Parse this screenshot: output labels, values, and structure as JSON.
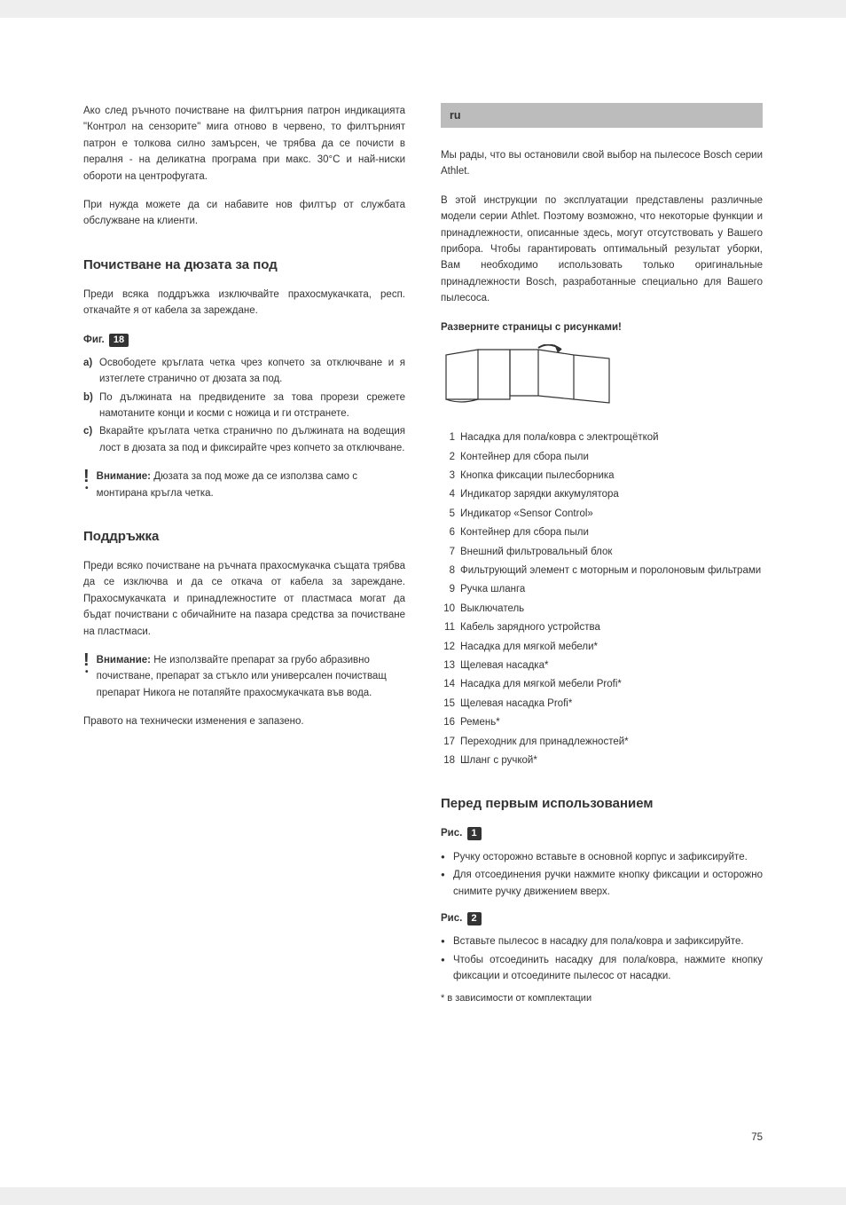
{
  "pageNumber": "75",
  "left": {
    "intro1": "Ако след ръчното почистване на филтърния патрон индикацията \"Контрол на сензорите\" мига отново в червено, то филтърният патрон е толкова силно замърсен, че трябва да се почисти в пералня - на деликатна програма при макс. 30°C и най-ниски обороти на центрофугата.",
    "intro2": "При нужда можете да си набавите нов филтър от службата обслужване на клиенти.",
    "section1_title": "Почистване на дюзата за под",
    "section1_para": "Преди всяка поддръжка изключвайте прахосмукачката, респ. откачайте я от кабела за зареждане.",
    "fig_label": "Фиг.",
    "fig_num": "18",
    "fig_items": {
      "a": "Освободете кръглата четка чрез копчето за отключване и я изтеглете странично от дюзата за под.",
      "b": "По дължината на предвидените за това прорези срежете намотаните конци и косми с ножица и ги отстранете.",
      "c": "Вкарайте кръглата четка странично по дължината на водещия лост в дюзата за под и фиксирайте чрез копчето за отключване."
    },
    "warn1_strong": "Внимание:",
    "warn1_text": " Дюзата за под може да се използва само с монтирана кръгла четка.",
    "section2_title": "Поддръжка",
    "section2_para": "Преди всяко почистване на ръчната прахосмукачка същата трябва да се изключва и да се откача от кабела за зареждане. Прахосмукачката и принадлежностите от пластмаса могат да бъдат почиствани с обичайните на пазара средства за почистване на пластмаси.",
    "warn2_strong": "Внимание:",
    "warn2_text": " Не използвайте препарат за грубо абразивно почистване, препарат за стъкло или универсален почистващ препарат Никога не потапяйте прахосмукачката във вода.",
    "closing": "Правото на технически изменения е запазено."
  },
  "right": {
    "lang": "ru",
    "intro1": "Мы рады, что вы остановили свой выбор на пылесосе Bosch серии Athlet.",
    "intro2": "В этой инструкции по эксплуатации представлены различные модели серии Athlet. Поэтому возможно, что некоторые функции и принадлежности, описанные здесь, могут отсутствовать у Вашего прибора. Чтобы гарантировать оптимальный результат уборки, Вам необходимо использовать только оригинальные принадлежности Bosch, разработанные специально для Вашего пылесоса.",
    "unfold": "Разверните страницы с рисунками!",
    "parts": [
      "Насадка для пола/ковра с электрощёткой",
      "Контейнер для сбора пыли",
      "Кнопка фиксации пылесборника",
      "Индикатор зарядки аккумулятора",
      "Индикатор «Sensor Control»",
      "Контейнер для сбора пыли",
      "Внешний фильтровальный блок",
      "Фильтрующий элемент с моторным и поролоновым фильтрами",
      "Ручка шланга",
      "Выключатель",
      "Кабель зарядного устройства",
      "Насадка для мягкой мебели*",
      "Щелевая насадка*",
      "Насадка для мягкой мебели Profi*",
      "Щелевая насадка Profi*",
      "Ремень*",
      "Переходник для принадлежностей*",
      "Шланг с ручкой*"
    ],
    "before_title": "Перед первым использованием",
    "ris_label": "Рис.",
    "ris1_num": "1",
    "ris1_bullets": [
      "Ручку осторожно вставьте в основной корпус и зафиксируйте.",
      "Для отсоединения ручки нажмите кнопку фиксации и осторожно снимите ручку движением вверх."
    ],
    "ris2_num": "2",
    "ris2_bullets": [
      "Вставьте пылесос в насадку для пола/ковра и зафиксируйте.",
      "Чтобы отсоединить насадку для пола/ковра, нажмите кнопку фиксации и отсоедините пылесос от насадки."
    ],
    "footnote": "* в зависимости от комплектации"
  }
}
